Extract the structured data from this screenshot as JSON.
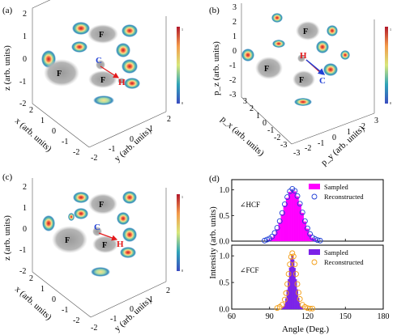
{
  "panels": {
    "a": {
      "label": "(a)",
      "z_label": "z (arb. units)",
      "x_label": "x (arb. units)",
      "y_label": "y (arb. units)",
      "z_ticks": [
        "2",
        "1",
        "0",
        "-1",
        "-2"
      ],
      "x_ticks": [
        "2",
        "1",
        "0",
        "-1",
        "-2"
      ],
      "y_ticks": [
        "-2",
        "-1",
        "0",
        "1",
        "2"
      ],
      "atom_labels": {
        "F": "F",
        "C": "C",
        "H": "H"
      },
      "colorbar": {
        "max": "1",
        "min": "0"
      }
    },
    "b": {
      "label": "(b)",
      "z_label": "p_z (arb. units)",
      "x_label": "p_x (arb. units)",
      "y_label": "p_y (arb. units)",
      "z_ticks": [
        "3",
        "2",
        "1",
        "0",
        "-1",
        "-2",
        "-3"
      ],
      "x_ticks": [
        "3",
        "2",
        "1",
        "0",
        "-1",
        "-2",
        "-3"
      ],
      "y_ticks": [
        "-3",
        "-2",
        "-1",
        "0",
        "1",
        "2",
        "3"
      ],
      "atom_labels": {
        "F": "F",
        "C": "C",
        "H": "H"
      },
      "colorbar": {
        "max": "1",
        "min": "0"
      }
    },
    "c": {
      "label": "(c)",
      "z_label": "z (arb. units)",
      "x_label": "x (arb. units)",
      "y_label": "y (arb. units)",
      "z_ticks": [
        "2",
        "1",
        "0",
        "-1",
        "-2"
      ],
      "x_ticks": [
        "2",
        "1",
        "0",
        "-1",
        "-2"
      ],
      "y_ticks": [
        "-2",
        "-1",
        "0",
        "1",
        "2"
      ],
      "atom_labels": {
        "F": "F",
        "C": "C",
        "H": "H"
      },
      "colorbar": {
        "max": "1",
        "min": "0"
      }
    },
    "d": {
      "label": "(d)"
    }
  },
  "chart_data": [
    {
      "type": "bar",
      "panel": "d-top",
      "annotation": "∠HCF",
      "ylabel": "Intensity (arb. units)",
      "ylim": [
        0,
        1.2
      ],
      "yticks": [
        "0.0",
        "0.5",
        "1.0"
      ],
      "xlim": [
        60,
        180
      ],
      "bin_width": 2,
      "series": [
        {
          "name": "Sampled",
          "style": "magenta bars",
          "x": [
            90,
            92,
            94,
            96,
            98,
            100,
            102,
            104,
            106,
            108,
            110,
            112,
            114,
            116,
            118,
            120,
            122,
            124,
            126
          ],
          "values": [
            0.03,
            0.07,
            0.13,
            0.23,
            0.36,
            0.52,
            0.69,
            0.84,
            0.96,
            1.0,
            0.97,
            0.87,
            0.72,
            0.55,
            0.38,
            0.24,
            0.13,
            0.06,
            0.03
          ]
        },
        {
          "name": "Reconstructed",
          "style": "blue open circles",
          "x": [
            86,
            88,
            90,
            92,
            94,
            96,
            98,
            100,
            102,
            104,
            106,
            108,
            110,
            112,
            114,
            116,
            118,
            120,
            122,
            124,
            126,
            128,
            130
          ],
          "values": [
            0.01,
            0.03,
            0.05,
            0.09,
            0.16,
            0.26,
            0.39,
            0.55,
            0.72,
            0.86,
            0.97,
            1.02,
            0.98,
            0.88,
            0.73,
            0.56,
            0.39,
            0.25,
            0.14,
            0.07,
            0.04,
            0.02,
            0.01
          ]
        }
      ]
    },
    {
      "type": "bar",
      "panel": "d-bottom",
      "annotation": "∠FCF",
      "xlabel": "Angle (Deg.)",
      "ylabel": "Intensity (arb. units)",
      "ylim": [
        0,
        1.2
      ],
      "yticks": [
        "0.0",
        "0.5",
        "1.0"
      ],
      "xlim": [
        60,
        180
      ],
      "xticks": [
        "60",
        "90",
        "120",
        "150",
        "180"
      ],
      "bin_width": 1,
      "series": [
        {
          "name": "Sampled",
          "style": "purple bars",
          "x": [
            100,
            101,
            102,
            103,
            104,
            105,
            106,
            107,
            108,
            109,
            110,
            111,
            112,
            113,
            114,
            115,
            116,
            117
          ],
          "values": [
            0.02,
            0.05,
            0.1,
            0.2,
            0.36,
            0.56,
            0.78,
            0.95,
            1.0,
            0.93,
            0.77,
            0.56,
            0.37,
            0.21,
            0.11,
            0.05,
            0.02,
            0.01
          ]
        },
        {
          "name": "Reconstructed",
          "style": "orange open circles",
          "x": [
            96,
            98,
            100,
            102,
            103,
            104,
            105,
            106,
            107,
            108,
            109,
            110,
            111,
            112,
            113,
            114,
            116,
            118,
            120,
            122,
            124
          ],
          "values": [
            0.02,
            0.04,
            0.08,
            0.18,
            0.3,
            0.47,
            0.66,
            0.84,
            0.98,
            1.05,
            0.99,
            0.84,
            0.66,
            0.47,
            0.31,
            0.19,
            0.08,
            0.04,
            0.02,
            0.01,
            0.01
          ]
        }
      ]
    }
  ]
}
